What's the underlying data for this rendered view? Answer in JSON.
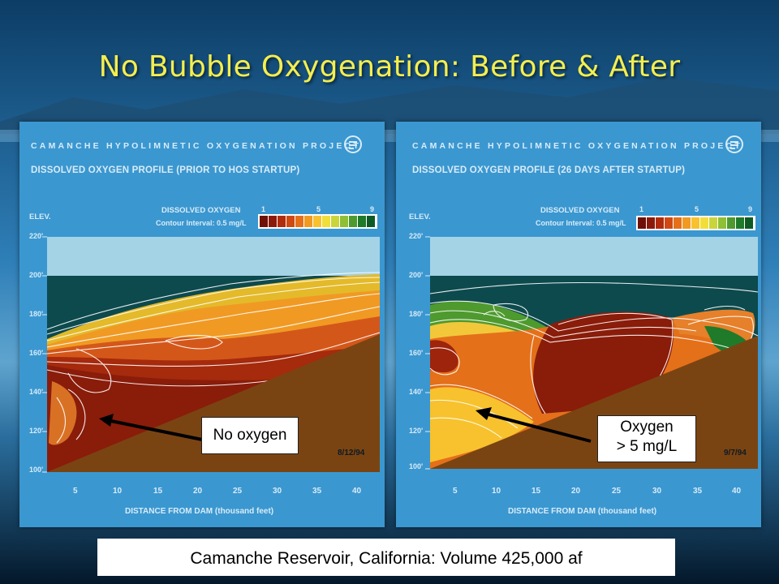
{
  "slide": {
    "title": "No Bubble Oxygenation:  Before & After",
    "caption": "Camanche Reservoir, California: Volume 425,000 af"
  },
  "panels": [
    {
      "project": "CAMANCHE HYPOLIMNETIC OXYGENATION PROJECT",
      "subtitle": "DISSOLVED OXYGEN PROFILE (PRIOR TO HOS STARTUP)",
      "legend_title": "DISSOLVED OXYGEN",
      "legend_sub": "Contour Interval: 0.5 mg/L",
      "legend_ticks": [
        "1",
        "5",
        "9"
      ],
      "y_label": "ELEV.",
      "y_ticks": [
        "220'",
        "200'",
        "180'",
        "160'",
        "140'",
        "120'",
        "100'"
      ],
      "x_ticks": [
        "5",
        "10",
        "15",
        "20",
        "25",
        "30",
        "35",
        "40"
      ],
      "x_label": "DISTANCE FROM DAM (thousand feet)",
      "date": "8/12/94",
      "callout": [
        "No oxygen"
      ]
    },
    {
      "project": "CAMANCHE HYPOLIMNETIC OXYGENATION PROJECT",
      "subtitle": "DISSOLVED OXYGEN PROFILE (26 DAYS AFTER STARTUP)",
      "legend_title": "DISSOLVED OXYGEN",
      "legend_sub": "Contour Interval: 0.5 mg/L",
      "legend_ticks": [
        "1",
        "5",
        "9"
      ],
      "y_label": "ELEV.",
      "y_ticks": [
        "220'",
        "200'",
        "180'",
        "160'",
        "140'",
        "120'",
        "100'"
      ],
      "x_ticks": [
        "5",
        "10",
        "15",
        "20",
        "25",
        "30",
        "35",
        "40"
      ],
      "x_label": "DISTANCE FROM DAM (thousand feet)",
      "date": "9/7/94",
      "callout": [
        "Oxygen",
        "> 5 mg/L"
      ]
    }
  ],
  "legend_colors": [
    "#6e0f08",
    "#8c1a0a",
    "#b02c0c",
    "#cf4a12",
    "#e4701a",
    "#f09a24",
    "#f7c22e",
    "#f2de3a",
    "#c9d53a",
    "#8fbf34",
    "#4e9a2e",
    "#1f7a2a",
    "#0e5a24"
  ],
  "colors": {
    "title_yellow": "#f4ee4e",
    "panel_blue": "#3b97d0",
    "water_top": "#0d4a4e",
    "ground": "#7a4412"
  }
}
